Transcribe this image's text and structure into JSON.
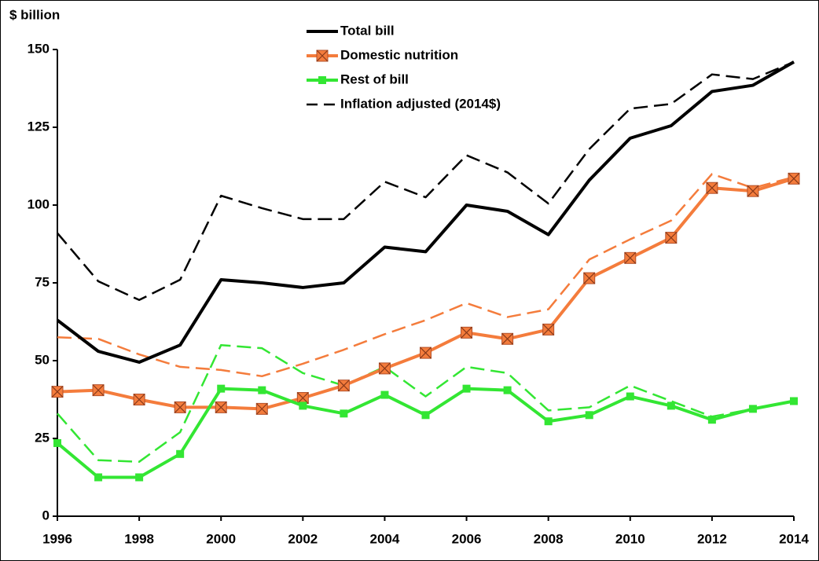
{
  "chart_data": {
    "type": "line",
    "ylabel": "$ billion",
    "x": [
      1996,
      1997,
      1998,
      1999,
      2000,
      2001,
      2002,
      2003,
      2004,
      2005,
      2006,
      2007,
      2008,
      2009,
      2010,
      2011,
      2012,
      2013,
      2014
    ],
    "xlim": [
      1996,
      2014
    ],
    "xticks": [
      1996,
      1998,
      2000,
      2002,
      2004,
      2006,
      2008,
      2010,
      2012,
      2014
    ],
    "ylim": [
      0,
      150
    ],
    "yticks": [
      0,
      25,
      50,
      75,
      100,
      125,
      150
    ],
    "series": [
      {
        "name": "Total bill",
        "color": "#000000",
        "values": [
          63,
          53,
          49.5,
          55,
          76,
          75,
          73.5,
          75,
          86.5,
          85,
          100,
          98,
          90.5,
          108,
          121.5,
          125.5,
          136.5,
          138.5,
          146
        ]
      },
      {
        "name": "Domestic nutrition",
        "color": "#f47c3c",
        "marker": "square-x",
        "values": [
          40,
          40.5,
          37.5,
          35,
          35,
          34.5,
          38,
          42,
          47.5,
          52.5,
          59,
          57,
          60,
          76.5,
          83,
          89.5,
          105.5,
          104.5,
          108.5
        ]
      },
      {
        "name": "Rest of bill",
        "color": "#33e633",
        "marker": "square",
        "values": [
          23.5,
          12.5,
          12.5,
          20,
          41,
          40.5,
          35.5,
          33,
          39,
          32.5,
          41,
          40.5,
          30.5,
          32.5,
          38.5,
          35.5,
          31,
          34.5,
          37
        ]
      }
    ],
    "inflation_adjusted": {
      "name": "Inflation adjusted (2014$)",
      "color": "#000000",
      "series": [
        {
          "color": "#000000",
          "values": [
            91,
            75.5,
            69.5,
            76,
            103,
            99,
            95.5,
            95.5,
            107.5,
            102.5,
            116,
            110.5,
            100.5,
            118,
            131,
            132.5,
            142,
            140.5,
            146
          ]
        },
        {
          "color": "#f47c3c",
          "values": [
            57.5,
            57,
            52,
            48,
            47,
            45,
            49,
            53.5,
            58.5,
            63,
            68.5,
            64,
            66.5,
            82.5,
            89,
            95,
            110,
            105.5,
            109
          ]
        },
        {
          "color": "#33e633",
          "values": [
            33,
            18,
            17.5,
            27,
            55,
            54,
            46,
            42,
            48,
            38.5,
            48,
            46,
            34,
            35,
            42,
            37,
            32,
            34.5,
            37
          ]
        }
      ]
    }
  }
}
